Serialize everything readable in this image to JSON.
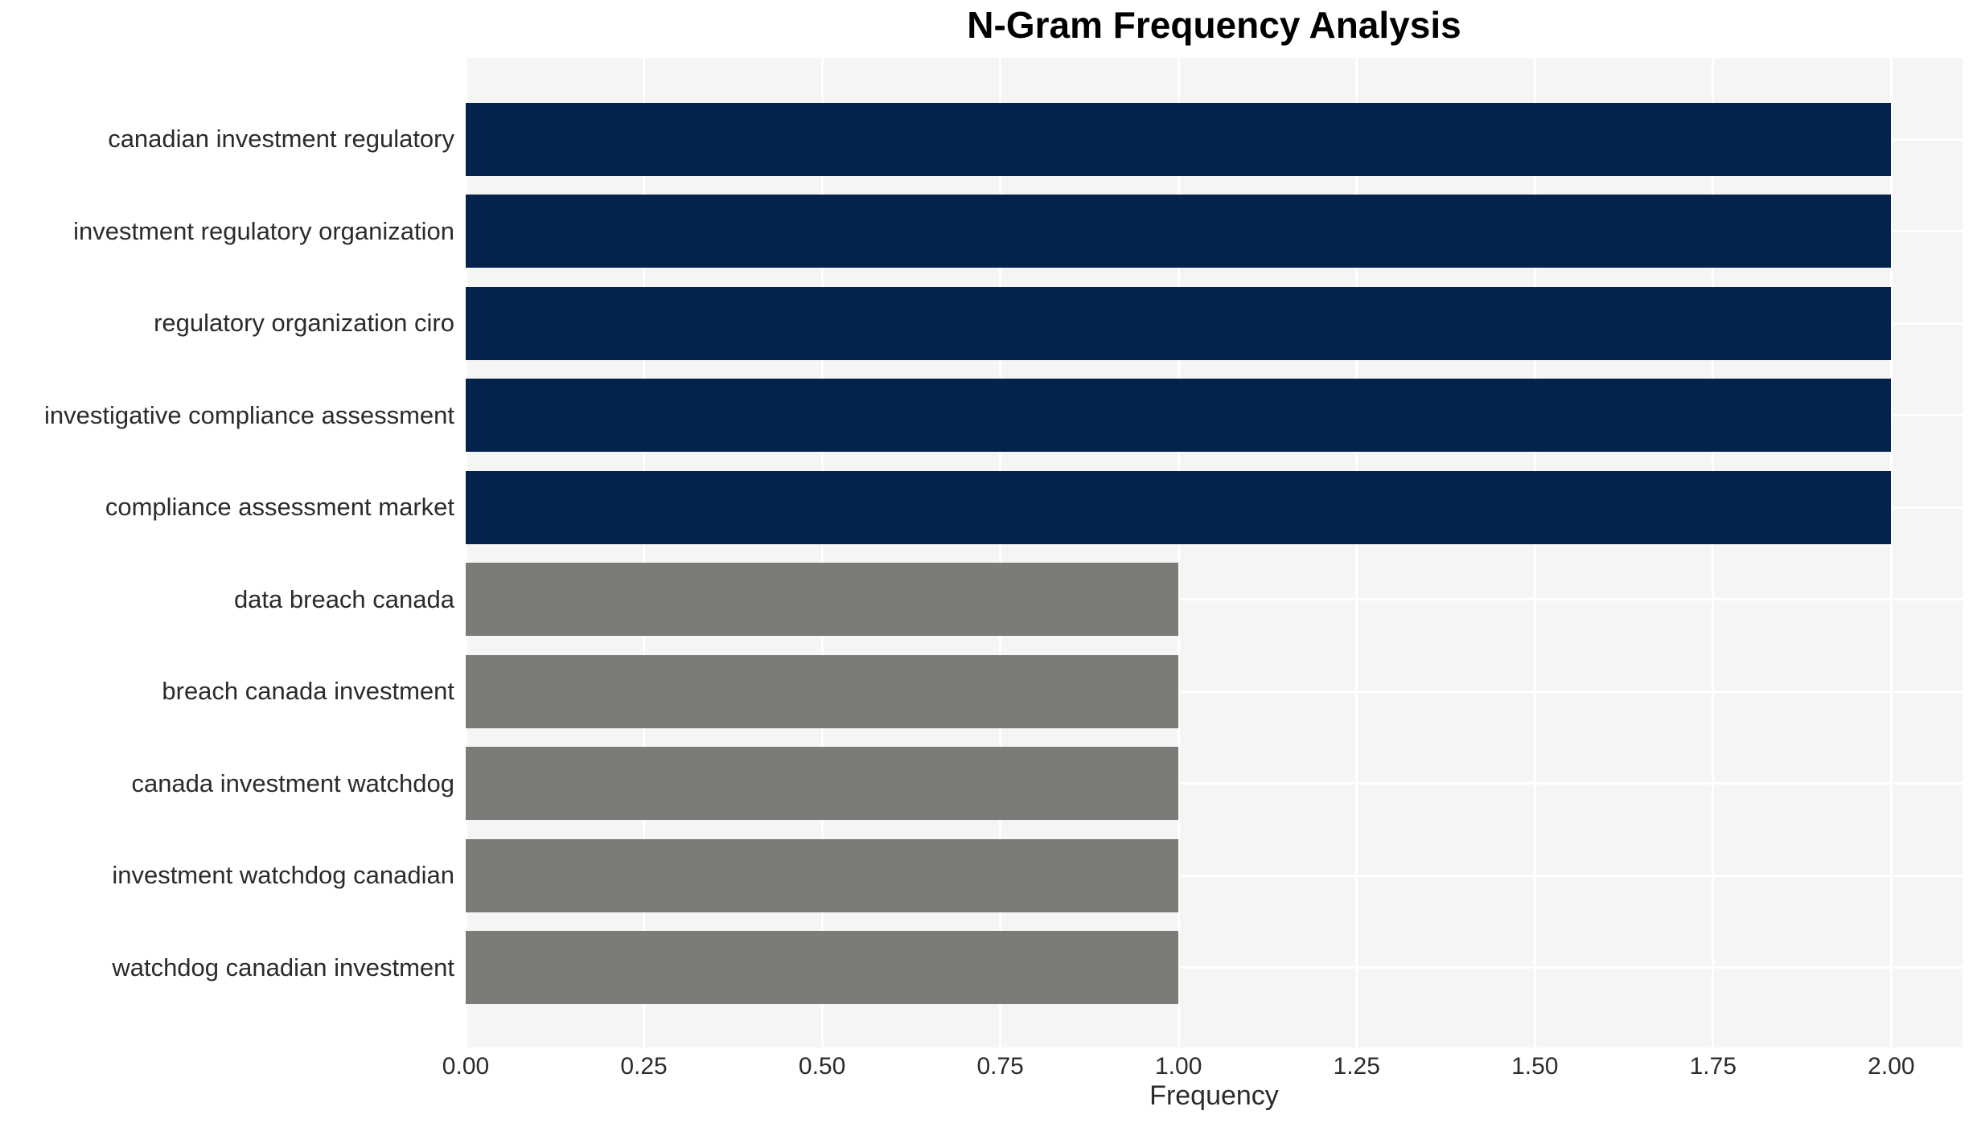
{
  "chart_data": {
    "type": "bar",
    "orientation": "horizontal",
    "title": "N-Gram Frequency Analysis",
    "xlabel": "Frequency",
    "ylabel": "",
    "categories": [
      "canadian investment regulatory",
      "investment regulatory organization",
      "regulatory organization ciro",
      "investigative compliance assessment",
      "compliance assessment market",
      "data breach canada",
      "breach canada investment",
      "canada investment watchdog",
      "investment watchdog canadian",
      "watchdog canadian investment"
    ],
    "values": [
      2,
      2,
      2,
      2,
      2,
      1,
      1,
      1,
      1,
      1
    ],
    "bar_colors": [
      "#03234d",
      "#03234d",
      "#03234d",
      "#03234d",
      "#03234d",
      "#7b7b78",
      "#7b7b78",
      "#7b7b78",
      "#7b7b78",
      "#7b7b78"
    ],
    "xlim": [
      0,
      2.1
    ],
    "xticks": [
      0,
      0.25,
      0.5,
      0.75,
      1.0,
      1.25,
      1.5,
      1.75,
      2.0
    ],
    "xtick_labels": [
      "0.00",
      "0.25",
      "0.50",
      "0.75",
      "1.00",
      "1.25",
      "1.50",
      "1.75",
      "2.00"
    ],
    "grid": true,
    "legend": false,
    "plot_background": "#f5f5f5",
    "gridline_color": "#ffffff",
    "tick_text_color": "#2b2b2b",
    "title_color": "#000000",
    "figure_background": "#ffffff"
  }
}
